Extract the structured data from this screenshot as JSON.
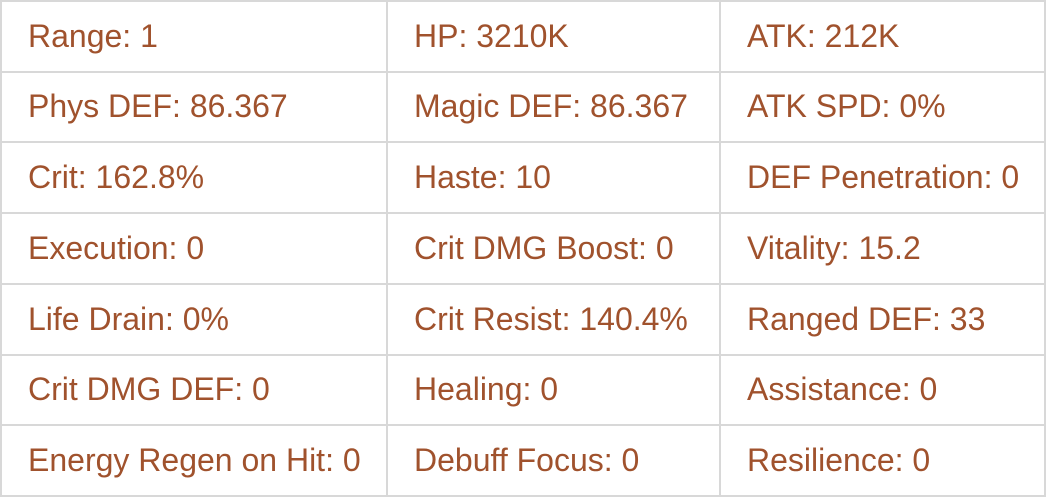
{
  "colors": {
    "text": "#a0522d",
    "border": "#d8d8d8",
    "background": "#ffffff"
  },
  "stats_table": {
    "rows": [
      {
        "cells": [
          {
            "label": "Range",
            "value": "1",
            "text": "Range: 1"
          },
          {
            "label": "HP",
            "value": "3210K",
            "text": "HP: 3210K"
          },
          {
            "label": "ATK",
            "value": "212K",
            "text": "ATK: 212K"
          }
        ]
      },
      {
        "cells": [
          {
            "label": "Phys DEF",
            "value": "86.367",
            "text": "Phys DEF: 86.367"
          },
          {
            "label": "Magic DEF",
            "value": "86.367",
            "text": "Magic DEF: 86.367"
          },
          {
            "label": "ATK SPD",
            "value": "0%",
            "text": "ATK SPD: 0%"
          }
        ]
      },
      {
        "cells": [
          {
            "label": "Crit",
            "value": "162.8%",
            "text": "Crit: 162.8%"
          },
          {
            "label": "Haste",
            "value": "10",
            "text": "Haste: 10"
          },
          {
            "label": "DEF Penetration",
            "value": "0",
            "text": "DEF Penetration: 0"
          }
        ]
      },
      {
        "cells": [
          {
            "label": "Execution",
            "value": "0",
            "text": "Execution: 0"
          },
          {
            "label": "Crit DMG Boost",
            "value": "0",
            "text": "Crit DMG Boost: 0"
          },
          {
            "label": "Vitality",
            "value": "15.2",
            "text": "Vitality: 15.2"
          }
        ]
      },
      {
        "cells": [
          {
            "label": "Life Drain",
            "value": "0%",
            "text": "Life Drain: 0%"
          },
          {
            "label": "Crit Resist",
            "value": "140.4%",
            "text": "Crit Resist: 140.4%"
          },
          {
            "label": "Ranged DEF",
            "value": "33",
            "text": "Ranged DEF: 33"
          }
        ]
      },
      {
        "cells": [
          {
            "label": "Crit DMG DEF",
            "value": "0",
            "text": "Crit DMG DEF: 0"
          },
          {
            "label": "Healing",
            "value": "0",
            "text": "Healing: 0"
          },
          {
            "label": "Assistance",
            "value": "0",
            "text": "Assistance: 0"
          }
        ]
      },
      {
        "cells": [
          {
            "label": "Energy Regen on Hit",
            "value": "0",
            "text": "Energy Regen on Hit: 0"
          },
          {
            "label": "Debuff Focus",
            "value": "0",
            "text": "Debuff Focus: 0"
          },
          {
            "label": "Resilience",
            "value": "0",
            "text": "Resilience: 0"
          }
        ]
      }
    ]
  }
}
